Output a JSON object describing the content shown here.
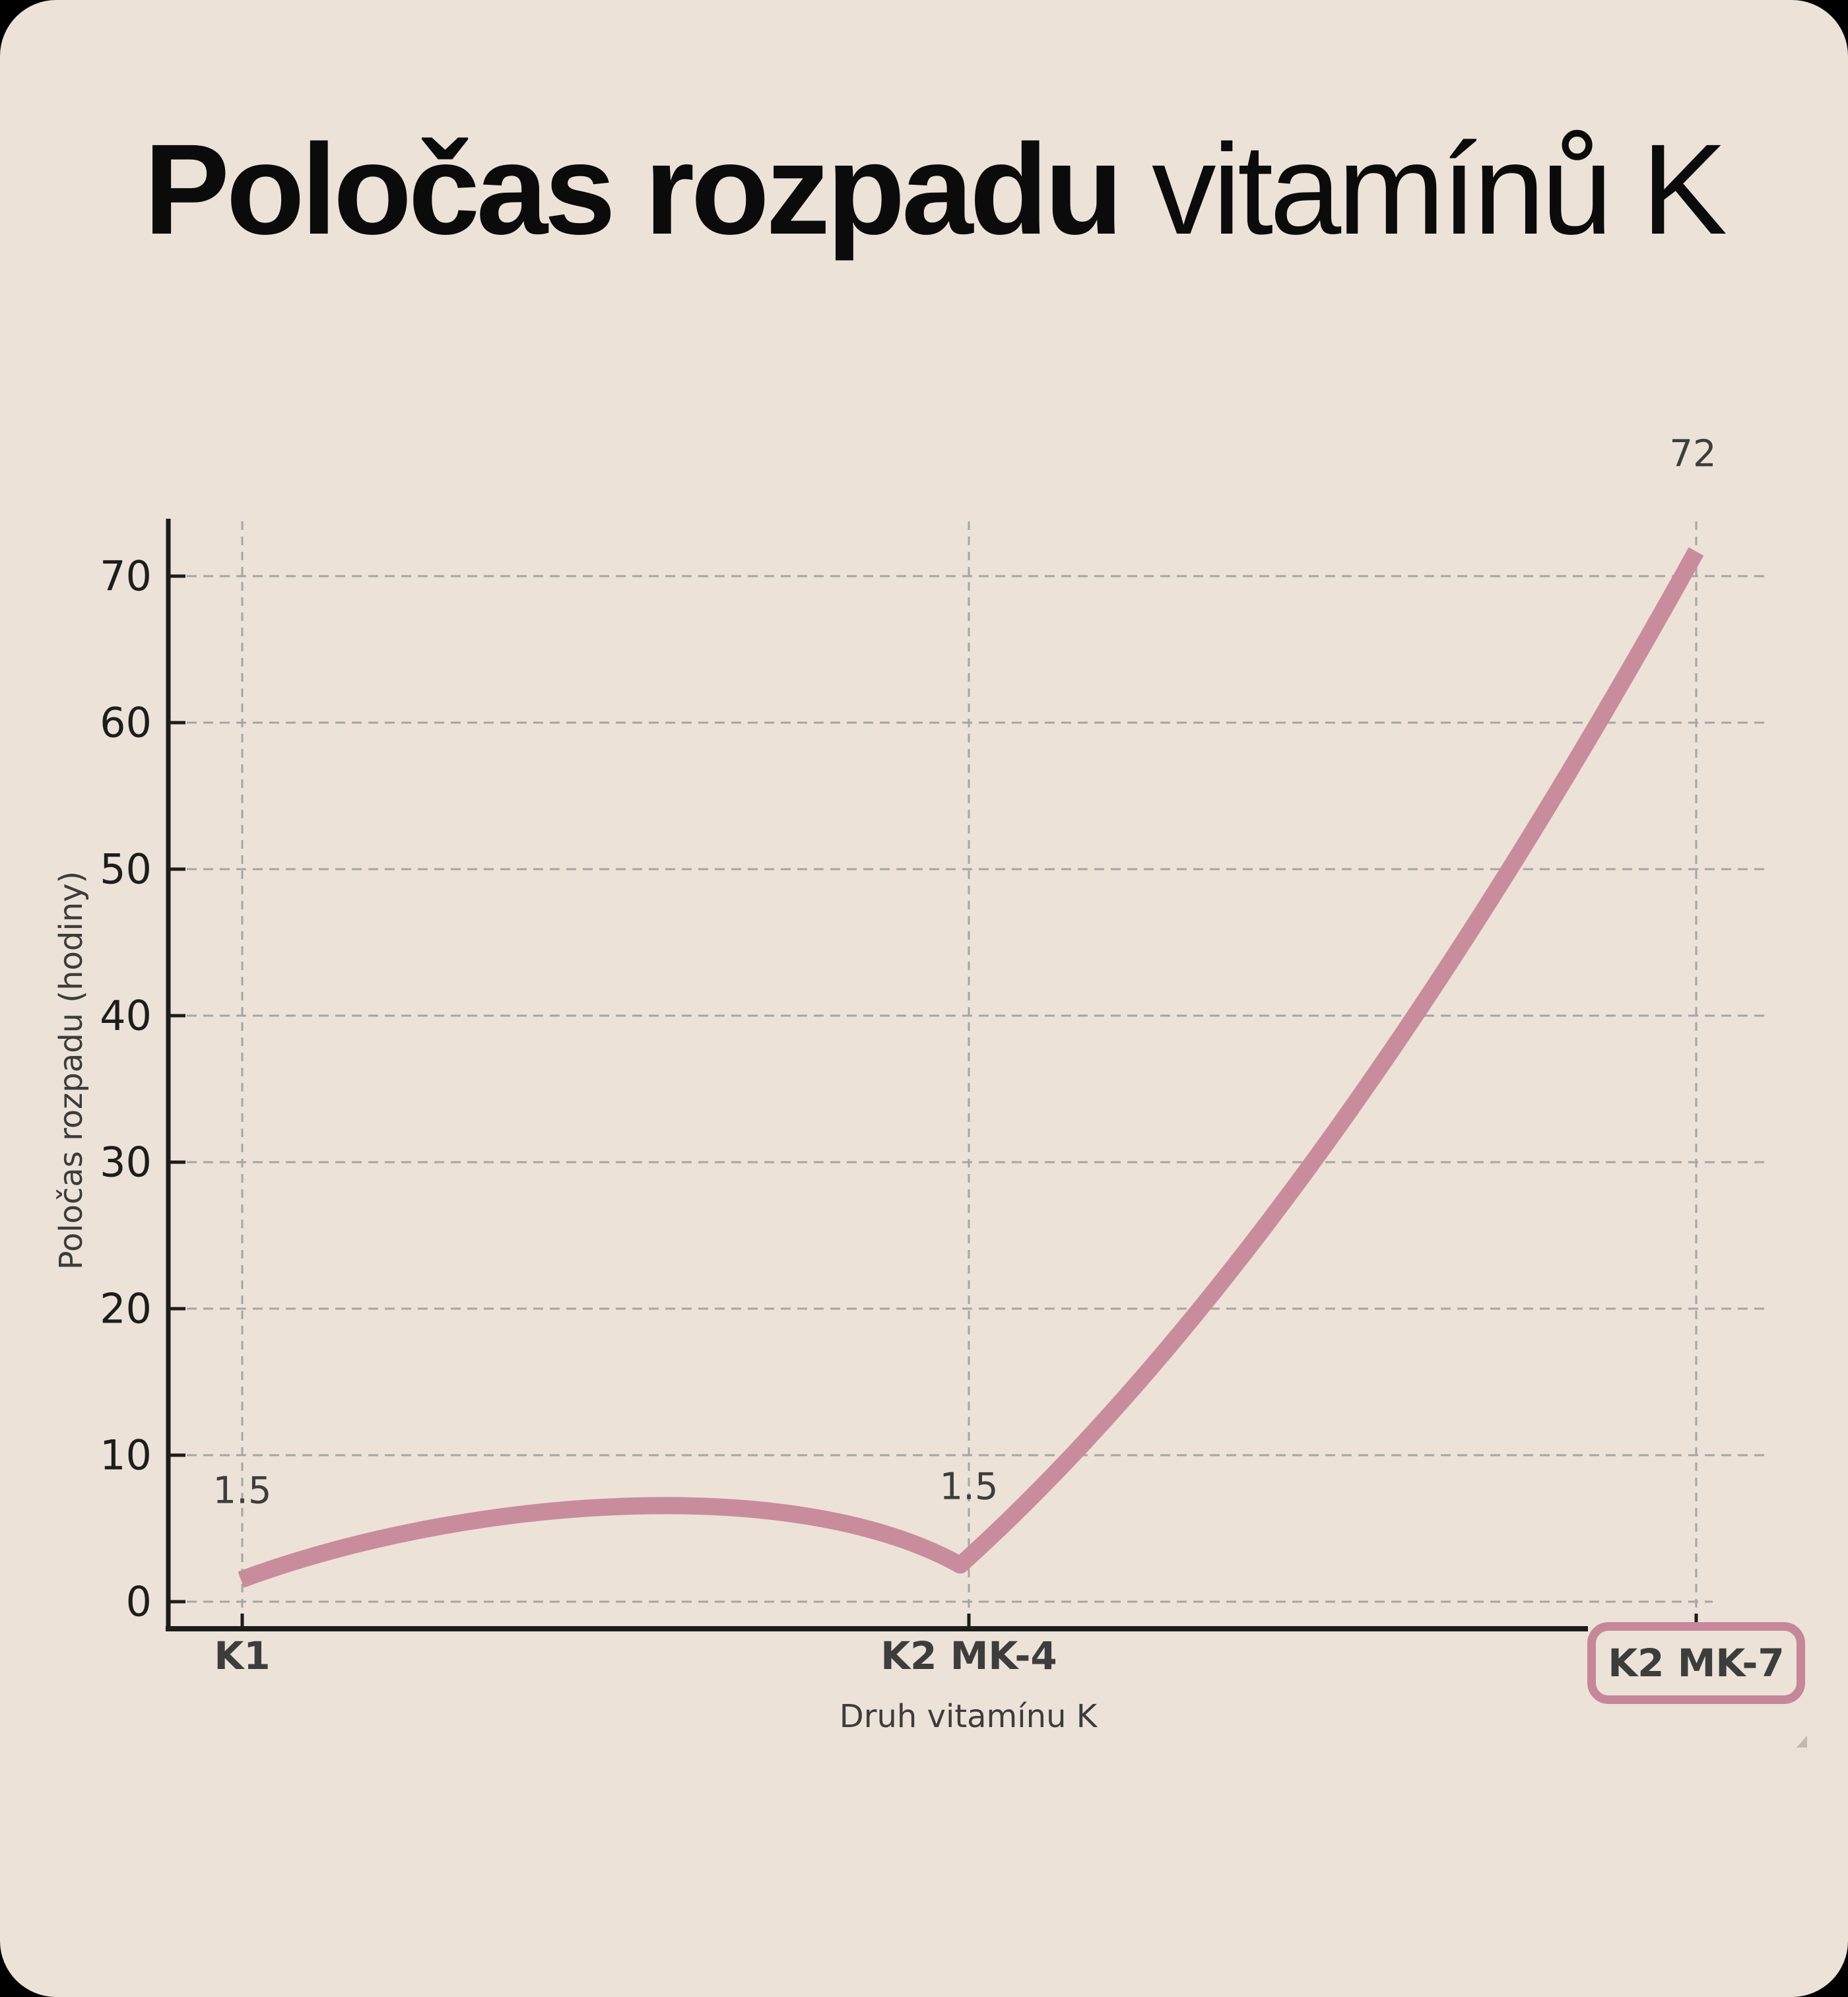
{
  "title": {
    "bold": "Poločas rozpadu",
    "regular": " vitamínů K"
  },
  "chart_data": {
    "type": "line",
    "title": "Poločas rozpadu vitamínů K",
    "categories": [
      "K1",
      "K2 MK-4",
      "K2 MK-7"
    ],
    "values": [
      1.5,
      1.5,
      72
    ],
    "data_labels": [
      "1.5",
      "1.5",
      "72"
    ],
    "xlabel": "Druh vitamínu K",
    "ylabel": "Poločas rozpadu (hodiny)",
    "yticks": [
      0,
      10,
      20,
      30,
      40,
      50,
      60,
      70
    ],
    "ylim": [
      0,
      75
    ],
    "grid": "dashed, horizontal at every 10 and vertical at each category",
    "legend_position": "none",
    "highlighted_category": "K2 MK-7",
    "colors": {
      "line": "#c98c9d",
      "highlight_box_border": "#c6879b",
      "card_background": "#ece2d8",
      "page_background": "#000000",
      "axis": "#1c1c1c",
      "gridline": "#a5a6a4",
      "y_tick_label": "#1d1d1d",
      "category_label": "#3d3d3d",
      "annotation": "#3d3d3d"
    }
  }
}
